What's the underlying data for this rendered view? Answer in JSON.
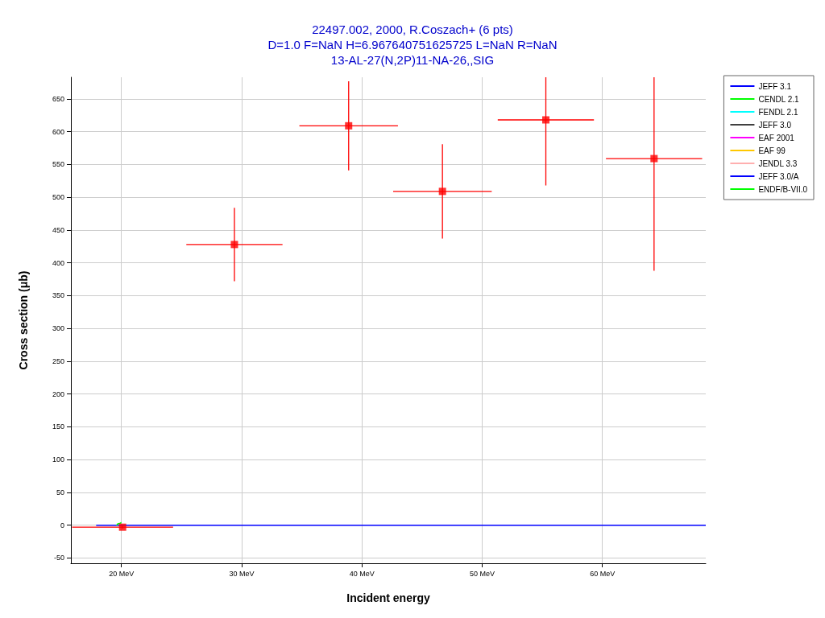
{
  "chart_data": {
    "type": "scatter",
    "title": "22497.002, 2000, R.Coszach+ (6 pts)\nD=1.0 F=NaN H=6.967640751625725 L=NaN R=NaN\n13-AL-27(N,2P)11-NA-26,,SIG",
    "xlabel": "Incident energy",
    "ylabel": "Cross section (μb)",
    "xlim": [
      15.8,
      68.6
    ],
    "ylim": [
      -58,
      683
    ],
    "xticks": [
      {
        "value": 20,
        "label": "20 MeV"
      },
      {
        "value": 30,
        "label": "30 MeV"
      },
      {
        "value": 40,
        "label": "40 MeV"
      },
      {
        "value": 50,
        "label": "50 MeV"
      },
      {
        "value": 60,
        "label": "60 MeV"
      }
    ],
    "yticks": [
      -50,
      0,
      50,
      100,
      150,
      200,
      250,
      300,
      350,
      400,
      450,
      500,
      550,
      600,
      650
    ],
    "grid": true,
    "legend": "top right",
    "series": [
      {
        "color": "#ff0000",
        "marker": "square",
        "x": [
          20.1,
          29.4,
          38.9,
          46.7,
          55.3,
          64.3
        ],
        "values": [
          -3,
          428,
          609,
          509,
          618,
          559
        ],
        "errors": [
          2,
          56,
          68,
          72,
          100,
          171
        ],
        "xerrors": [
          4.2,
          4.0,
          4.1,
          4.1,
          4.0,
          4.0
        ]
      },
      {
        "type": "line",
        "name": "JEFF 3.1",
        "color": "#0000ff",
        "x": [
          17.9,
          68.6
        ],
        "values": [
          0,
          0
        ]
      },
      {
        "type": "line",
        "name": "CENDL 2.1",
        "color": "#00ff00",
        "x": [
          19.6,
          19.7,
          19.9,
          20.0
        ],
        "values": [
          0,
          2,
          3,
          4
        ]
      },
      {
        "type": "line",
        "name": "FENDL 2.1",
        "color": "#00ffff"
      },
      {
        "type": "line",
        "name": "JEFF 3.0",
        "color": "#404040"
      },
      {
        "type": "line",
        "name": "EAF 2001",
        "color": "#ff00ff"
      },
      {
        "type": "line",
        "name": "EAF 99",
        "color": "#ffc800"
      },
      {
        "type": "line",
        "name": "JENDL 3.3",
        "color": "#ffafaf"
      },
      {
        "type": "line",
        "name": "JEFF 3.0/A",
        "color": "#0000ff"
      },
      {
        "type": "line",
        "name": "ENDF/B-VII.0",
        "color": "#00ff00"
      }
    ]
  }
}
